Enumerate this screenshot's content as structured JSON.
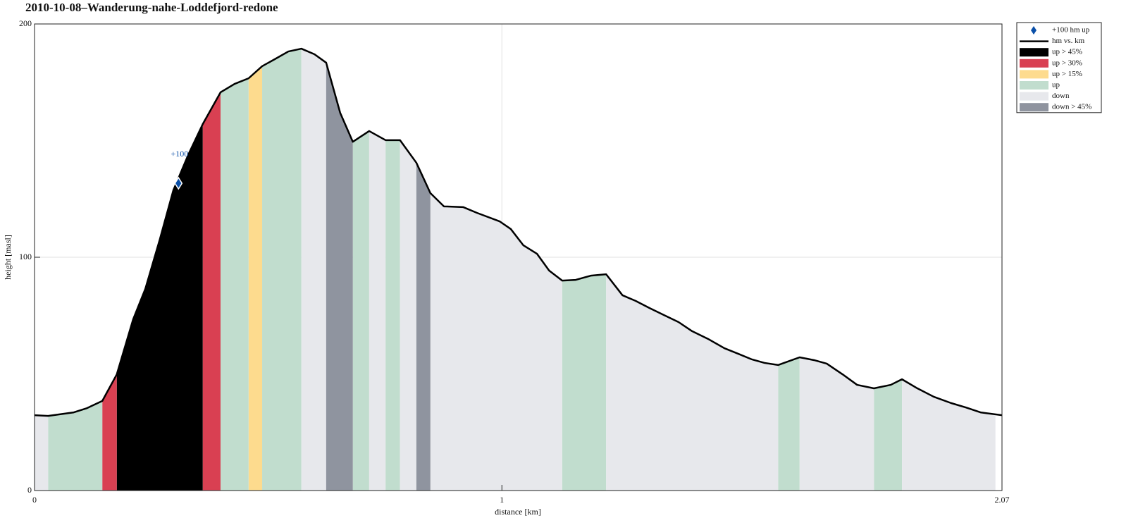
{
  "chart_data": {
    "type": "area",
    "title": "2010-10-08–Wanderung-nahe-Loddefjord-redone",
    "xlabel": "distance [km]",
    "ylabel": "height [masl]",
    "xlim": [
      0,
      2.07
    ],
    "ylim": [
      0,
      200
    ],
    "xticks": [
      0,
      1,
      2.07
    ],
    "yticks": [
      0,
      100,
      200
    ],
    "grid": true,
    "legend": "outside-upper-right",
    "series": [
      {
        "name": "+100 hm up",
        "color": "#0a4fa8",
        "x": [
          0.308
        ],
        "values": [
          131.7
        ],
        "labels": [
          "+100"
        ]
      },
      {
        "name": "hm vs. km",
        "color": "#000000",
        "x": [
          0,
          0.029,
          0.084,
          0.112,
          0.145,
          0.176,
          0.211,
          0.237,
          0.268,
          0.297,
          0.33,
          0.36,
          0.398,
          0.428,
          0.458,
          0.487,
          0.514,
          0.543,
          0.571,
          0.599,
          0.624,
          0.654,
          0.681,
          0.716,
          0.751,
          0.782,
          0.817,
          0.847,
          0.876,
          0.917,
          0.947,
          0.995,
          1.019,
          1.046,
          1.075,
          1.101,
          1.129,
          1.158,
          1.19,
          1.223,
          1.258,
          1.286,
          1.316,
          1.347,
          1.378,
          1.407,
          1.441,
          1.476,
          1.506,
          1.535,
          1.562,
          1.591,
          1.637,
          1.668,
          1.695,
          1.729,
          1.76,
          1.796,
          1.832,
          1.856,
          1.889,
          1.924,
          1.961,
          1.993,
          2.024,
          2.07
        ],
        "values": [
          32.3,
          32.0,
          33.5,
          35.3,
          38.4,
          49.8,
          73.4,
          86.4,
          107.6,
          128.7,
          144.4,
          157.1,
          170.7,
          174.3,
          176.7,
          181.9,
          184.9,
          188.2,
          189.4,
          187.0,
          183.4,
          161.9,
          149.5,
          154.1,
          150.2,
          150.2,
          140.5,
          127.5,
          121.8,
          121.5,
          119.0,
          115.4,
          112.1,
          105.1,
          101.5,
          94.3,
          90.0,
          90.3,
          92.1,
          92.7,
          83.7,
          81.3,
          78.2,
          75.2,
          72.2,
          68.3,
          65.0,
          61.0,
          58.6,
          56.2,
          54.7,
          53.8,
          57.1,
          55.9,
          54.4,
          49.8,
          45.3,
          43.8,
          45.3,
          47.7,
          43.8,
          40.2,
          37.5,
          35.6,
          33.5,
          32.3
        ]
      },
      {
        "name": "up > 45%",
        "color": "#000000",
        "ranges": [
          [
            0.176,
            0.36
          ]
        ]
      },
      {
        "name": "up > 30%",
        "color": "#d94052",
        "ranges": [
          [
            0.145,
            0.176
          ],
          [
            0.36,
            0.398
          ]
        ]
      },
      {
        "name": "up > 15%",
        "color": "#fddb8e",
        "ranges": [
          [
            0.458,
            0.487
          ]
        ]
      },
      {
        "name": "up",
        "color": "#c1ddce",
        "ranges": [
          [
            0.029,
            0.145
          ],
          [
            0.398,
            0.458
          ],
          [
            0.487,
            0.571
          ],
          [
            0.681,
            0.716
          ],
          [
            0.751,
            0.782
          ],
          [
            1.129,
            1.223
          ],
          [
            1.591,
            1.637
          ],
          [
            1.796,
            1.856
          ]
        ]
      },
      {
        "name": "down",
        "color": "#e7e8ec",
        "ranges": [
          [
            0,
            0.029
          ],
          [
            0.571,
            0.624
          ],
          [
            0.716,
            0.751
          ],
          [
            0.782,
            0.817
          ],
          [
            0.847,
            1.129
          ],
          [
            1.223,
            1.591
          ],
          [
            1.637,
            1.796
          ],
          [
            1.856,
            2.056
          ]
        ]
      },
      {
        "name": "down > 45%",
        "color": "#8f949f",
        "ranges": [
          [
            0.624,
            0.681
          ],
          [
            0.817,
            0.847
          ]
        ]
      }
    ]
  }
}
